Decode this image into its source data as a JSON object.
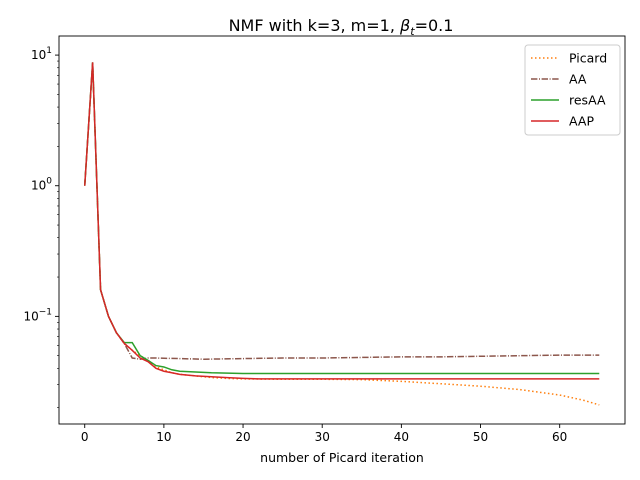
{
  "chart_data": {
    "type": "line",
    "title_main": "NMF with k=3, m=1,  ",
    "title_beta": "β",
    "title_sub": "t",
    "title_tail": "=0.1",
    "xlabel": "number of Picard iteration",
    "ylabel": "",
    "xlim": [
      -3.25,
      68.25
    ],
    "ylim": [
      0.015,
      14
    ],
    "yscale": "log",
    "grid": false,
    "legend_position": "top-right",
    "x_ticks": [
      0,
      10,
      20,
      30,
      40,
      50,
      60
    ],
    "y_ticks": [
      {
        "value": 10,
        "base": "10",
        "exp": "1"
      },
      {
        "value": 1,
        "base": "10",
        "exp": "0"
      },
      {
        "value": 0.1,
        "base": "10",
        "exp": "−1"
      }
    ],
    "series": [
      {
        "name": "Picard",
        "color": "#ff7f0e",
        "dash": "dotted",
        "points": [
          [
            0,
            1.0
          ],
          [
            1,
            8.5
          ],
          [
            2,
            0.16
          ],
          [
            3,
            0.1
          ],
          [
            4,
            0.075
          ],
          [
            5,
            0.062
          ],
          [
            6,
            0.055
          ],
          [
            7,
            0.05
          ],
          [
            8,
            0.046
          ],
          [
            9,
            0.041
          ],
          [
            10,
            0.039
          ],
          [
            11,
            0.037
          ],
          [
            12,
            0.036
          ],
          [
            13,
            0.0355
          ],
          [
            14,
            0.035
          ],
          [
            15,
            0.0345
          ],
          [
            16,
            0.034
          ],
          [
            18,
            0.0335
          ],
          [
            20,
            0.0332
          ],
          [
            25,
            0.033
          ],
          [
            30,
            0.033
          ],
          [
            35,
            0.0328
          ],
          [
            40,
            0.0318
          ],
          [
            45,
            0.0305
          ],
          [
            50,
            0.0292
          ],
          [
            55,
            0.0275
          ],
          [
            60,
            0.025
          ],
          [
            63,
            0.0228
          ],
          [
            65,
            0.021
          ]
        ]
      },
      {
        "name": "AA",
        "color": "#8c564b",
        "dash": "dashdot",
        "points": [
          [
            0,
            1.0
          ],
          [
            1,
            8.8
          ],
          [
            2,
            0.16
          ],
          [
            3,
            0.1
          ],
          [
            4,
            0.075
          ],
          [
            5,
            0.062
          ],
          [
            6,
            0.048
          ],
          [
            7,
            0.047
          ],
          [
            8,
            0.048
          ],
          [
            9,
            0.048
          ],
          [
            10,
            0.0478
          ],
          [
            12,
            0.0475
          ],
          [
            15,
            0.047
          ],
          [
            20,
            0.0475
          ],
          [
            25,
            0.048
          ],
          [
            30,
            0.048
          ],
          [
            35,
            0.0485
          ],
          [
            40,
            0.049
          ],
          [
            45,
            0.049
          ],
          [
            50,
            0.0495
          ],
          [
            55,
            0.05
          ],
          [
            60,
            0.0505
          ],
          [
            65,
            0.0505
          ]
        ]
      },
      {
        "name": "resAA",
        "color": "#2ca02c",
        "dash": "solid",
        "points": [
          [
            0,
            1.0
          ],
          [
            1,
            8.8
          ],
          [
            2,
            0.16
          ],
          [
            3,
            0.1
          ],
          [
            4,
            0.075
          ],
          [
            5,
            0.063
          ],
          [
            6,
            0.063
          ],
          [
            7,
            0.05
          ],
          [
            8,
            0.046
          ],
          [
            9,
            0.042
          ],
          [
            10,
            0.041
          ],
          [
            11,
            0.039
          ],
          [
            12,
            0.038
          ],
          [
            14,
            0.0375
          ],
          [
            16,
            0.037
          ],
          [
            20,
            0.0365
          ],
          [
            25,
            0.0365
          ],
          [
            30,
            0.0365
          ],
          [
            40,
            0.0365
          ],
          [
            50,
            0.0365
          ],
          [
            60,
            0.0365
          ],
          [
            65,
            0.0365
          ]
        ]
      },
      {
        "name": "AAP",
        "color": "#d62728",
        "dash": "solid",
        "points": [
          [
            0,
            1.0
          ],
          [
            1,
            8.8
          ],
          [
            2,
            0.16
          ],
          [
            3,
            0.1
          ],
          [
            4,
            0.075
          ],
          [
            5,
            0.062
          ],
          [
            6,
            0.055
          ],
          [
            7,
            0.048
          ],
          [
            8,
            0.045
          ],
          [
            9,
            0.04
          ],
          [
            10,
            0.038
          ],
          [
            11,
            0.037
          ],
          [
            12,
            0.036
          ],
          [
            13,
            0.0355
          ],
          [
            14,
            0.035
          ],
          [
            16,
            0.0345
          ],
          [
            18,
            0.034
          ],
          [
            20,
            0.0335
          ],
          [
            22,
            0.0332
          ],
          [
            25,
            0.0332
          ],
          [
            30,
            0.0332
          ],
          [
            40,
            0.0332
          ],
          [
            50,
            0.0332
          ],
          [
            60,
            0.0332
          ],
          [
            65,
            0.0332
          ]
        ]
      }
    ]
  }
}
